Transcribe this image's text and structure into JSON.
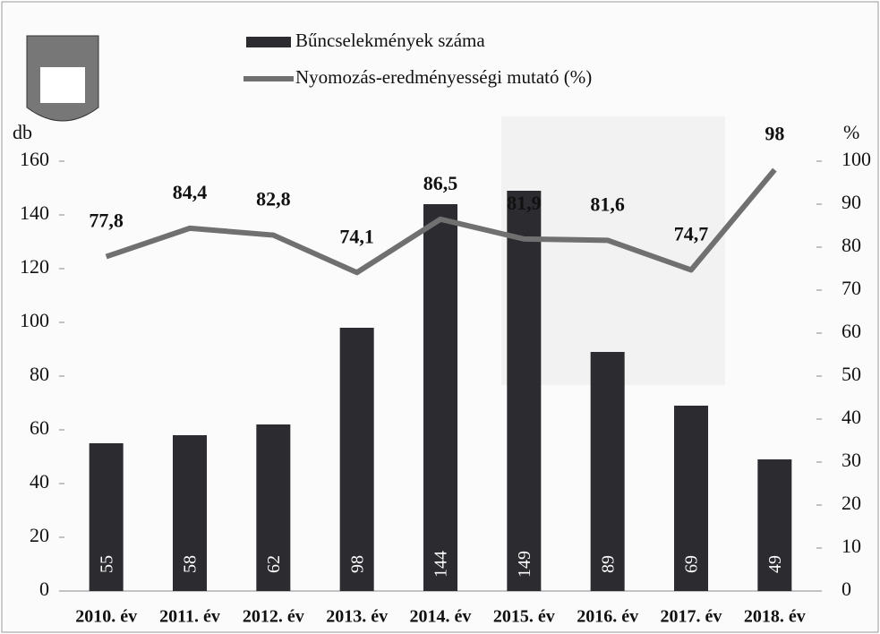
{
  "chart_data": {
    "type": "bar-line",
    "categories": [
      "2010. év",
      "2011. év",
      "2012. év",
      "2013. év",
      "2014. év",
      "2015. év",
      "2016. év",
      "2017. év",
      "2018. év"
    ],
    "series": [
      {
        "name": "Bűncselekmények száma",
        "type": "bar",
        "color": "#2b2b30",
        "values": [
          55,
          58,
          62,
          98,
          144,
          149,
          89,
          69,
          49
        ]
      },
      {
        "name": "Nyomozás-eredményességi mutató (%)",
        "type": "line",
        "axis": "y2",
        "color": "#707070",
        "values": [
          77.8,
          84.4,
          82.8,
          74.1,
          86.5,
          81.9,
          81.6,
          74.7,
          98
        ],
        "value_labels": [
          "77,8",
          "84,4",
          "82,8",
          "74,1",
          "86,5",
          "81,9",
          "81,6",
          "74,7",
          "98"
        ]
      }
    ],
    "ylabel": "db",
    "y2label": "%",
    "ylim": [
      0,
      160
    ],
    "yticks": [
      0,
      20,
      40,
      60,
      80,
      100,
      120,
      140,
      160
    ],
    "y2lim": [
      0,
      100
    ],
    "y2ticks": [
      0,
      10,
      20,
      30,
      40,
      50,
      60,
      70,
      80,
      90,
      100
    ],
    "legend": "top"
  }
}
